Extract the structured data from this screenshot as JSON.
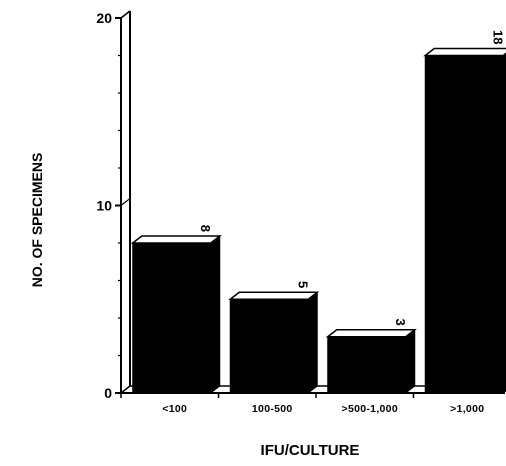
{
  "chart_data": {
    "type": "bar",
    "title": "",
    "xlabel": "IFU/CULTURE",
    "ylabel": "NO. OF SPECIMENS",
    "categories": [
      "<100",
      "100-500",
      ">500-1,000",
      ">1,000"
    ],
    "values": [
      8,
      5,
      3,
      18
    ],
    "data_labels": [
      "8",
      "5",
      "3",
      "18"
    ],
    "ylim": [
      0,
      20
    ],
    "yticks": [
      0,
      10,
      20
    ],
    "ytick_labels": [
      "0",
      "10",
      "20"
    ],
    "grid": false,
    "legend": "none",
    "style": "3d-bars",
    "colors": {
      "bar_front": "#000000",
      "bar_top": "#ffffff",
      "bar_side": "#000000",
      "axis": "#000000"
    }
  }
}
